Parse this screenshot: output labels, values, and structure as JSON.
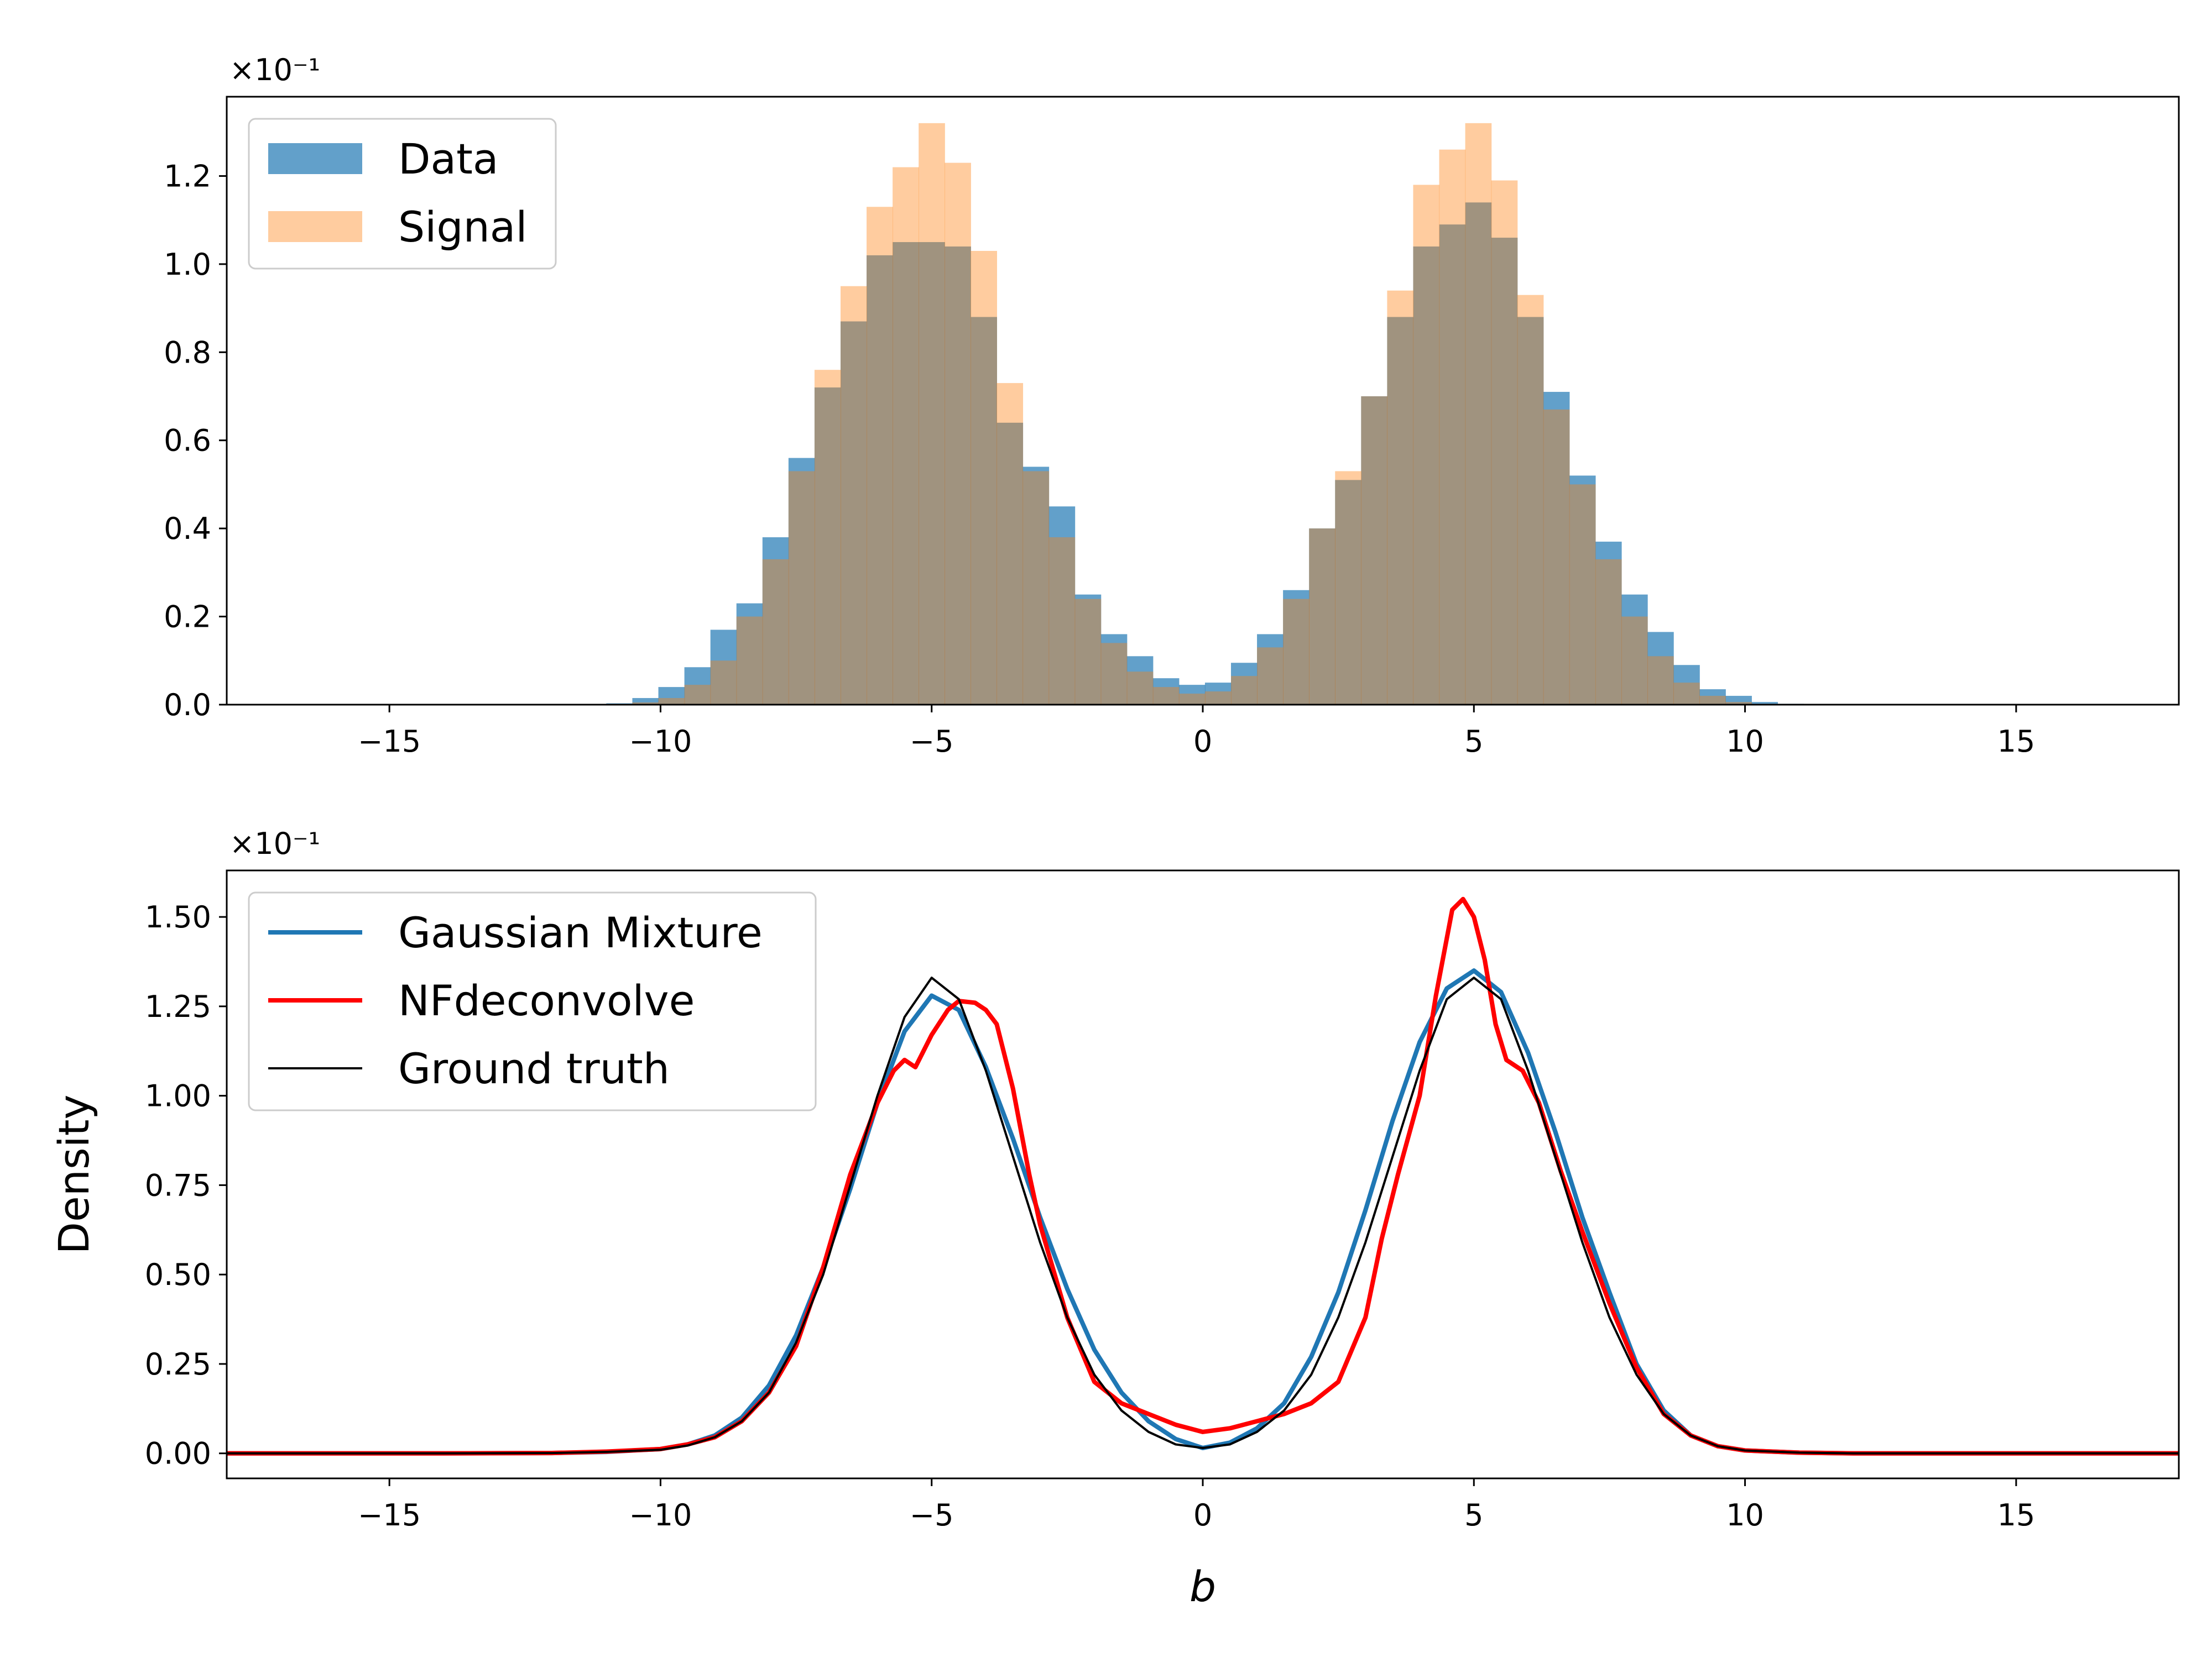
{
  "chart_data": [
    {
      "type": "bar",
      "subtype": "overlaid-histogram",
      "offset_label": "×10⁻¹",
      "xlim": [
        -18,
        18
      ],
      "ylim": [
        0,
        1.38
      ],
      "xticks": [
        -15,
        -10,
        -5,
        0,
        5,
        10,
        15
      ],
      "xtick_labels": [
        "−15",
        "−10",
        "−5",
        "0",
        "5",
        "10",
        "15"
      ],
      "yticks": [
        0.0,
        0.2,
        0.4,
        0.6,
        0.8,
        1.0,
        1.2
      ],
      "ytick_labels": [
        "0.0",
        "0.2",
        "0.4",
        "0.6",
        "0.8",
        "1.0",
        "1.2"
      ],
      "xlabel": "",
      "ylabel": "",
      "legend_position": "upper-left",
      "bin_edges": [
        -11.0,
        -10.52,
        -10.04,
        -9.56,
        -9.08,
        -8.6,
        -8.12,
        -7.64,
        -7.16,
        -6.68,
        -6.2,
        -5.72,
        -5.24,
        -4.76,
        -4.28,
        -3.8,
        -3.32,
        -2.84,
        -2.36,
        -1.88,
        -1.4,
        -0.92,
        -0.44,
        0.04,
        0.52,
        1.0,
        1.48,
        1.96,
        2.44,
        2.92,
        3.4,
        3.88,
        4.36,
        4.84,
        5.32,
        5.8,
        6.28,
        6.76,
        7.24,
        7.72,
        8.2,
        8.68,
        9.16,
        9.64,
        10.12,
        10.6,
        11.08
      ],
      "series": [
        {
          "name": "Data",
          "color": "#1f77b4",
          "alpha": 0.7,
          "values": [
            0.003,
            0.015,
            0.04,
            0.085,
            0.17,
            0.23,
            0.38,
            0.56,
            0.72,
            0.87,
            1.02,
            1.05,
            1.05,
            1.04,
            0.88,
            0.64,
            0.54,
            0.45,
            0.25,
            0.16,
            0.11,
            0.06,
            0.045,
            0.05,
            0.095,
            0.16,
            0.26,
            0.4,
            0.51,
            0.7,
            0.88,
            1.04,
            1.09,
            1.14,
            1.06,
            0.88,
            0.71,
            0.52,
            0.37,
            0.25,
            0.165,
            0.09,
            0.035,
            0.02,
            0.006,
            0.002
          ]
        },
        {
          "name": "Signal",
          "color": "#ff7f0e",
          "alpha": 0.4,
          "values": [
            0.0,
            0.005,
            0.015,
            0.045,
            0.1,
            0.2,
            0.33,
            0.53,
            0.76,
            0.95,
            1.13,
            1.22,
            1.32,
            1.23,
            1.03,
            0.73,
            0.53,
            0.38,
            0.24,
            0.14,
            0.075,
            0.04,
            0.025,
            0.03,
            0.065,
            0.13,
            0.24,
            0.4,
            0.53,
            0.7,
            0.94,
            1.18,
            1.26,
            1.32,
            1.19,
            0.93,
            0.67,
            0.5,
            0.33,
            0.2,
            0.11,
            0.05,
            0.02,
            0.006,
            0.002,
            0.0
          ]
        }
      ]
    },
    {
      "type": "line",
      "offset_label": "×10⁻¹",
      "xlim": [
        -18,
        18
      ],
      "ylim": [
        -0.07,
        1.63
      ],
      "xticks": [
        -15,
        -10,
        -5,
        0,
        5,
        10,
        15
      ],
      "xtick_labels": [
        "−15",
        "−10",
        "−5",
        "0",
        "5",
        "10",
        "15"
      ],
      "yticks": [
        0.0,
        0.25,
        0.5,
        0.75,
        1.0,
        1.25,
        1.5
      ],
      "ytick_labels": [
        "0.00",
        "0.25",
        "0.50",
        "0.75",
        "1.00",
        "1.25",
        "1.50"
      ],
      "xlabel": "b",
      "ylabel": "Density",
      "legend_position": "upper-left",
      "series": [
        {
          "name": "Gaussian Mixture",
          "color": "#1f77b4",
          "linewidth": 3,
          "x": [
            -18,
            -14,
            -12,
            -11,
            -10,
            -9.5,
            -9,
            -8.5,
            -8,
            -7.5,
            -7,
            -6.5,
            -6,
            -5.5,
            -5,
            -4.5,
            -4,
            -3.5,
            -3,
            -2.5,
            -2,
            -1.5,
            -1,
            -0.5,
            0,
            0.5,
            1,
            1.5,
            2,
            2.5,
            3,
            3.5,
            4,
            4.5,
            5,
            5.5,
            6,
            6.5,
            7,
            7.5,
            8,
            8.5,
            9,
            9.5,
            10,
            11,
            12,
            14,
            18
          ],
          "y": [
            0.0,
            0.0,
            0.001,
            0.004,
            0.012,
            0.025,
            0.05,
            0.1,
            0.19,
            0.33,
            0.52,
            0.74,
            0.98,
            1.18,
            1.28,
            1.24,
            1.08,
            0.88,
            0.66,
            0.46,
            0.29,
            0.17,
            0.09,
            0.04,
            0.015,
            0.03,
            0.07,
            0.14,
            0.27,
            0.45,
            0.68,
            0.93,
            1.15,
            1.3,
            1.35,
            1.29,
            1.12,
            0.9,
            0.66,
            0.45,
            0.25,
            0.12,
            0.05,
            0.02,
            0.008,
            0.002,
            0.0,
            0.0,
            0.0
          ]
        },
        {
          "name": "NFdeconvolve",
          "color": "#ff0000",
          "linewidth": 3,
          "x": [
            -18,
            -14,
            -12,
            -11,
            -10,
            -9.5,
            -9,
            -8.5,
            -8,
            -7.5,
            -7,
            -6.5,
            -6,
            -5.7,
            -5.5,
            -5.3,
            -5,
            -4.7,
            -4.5,
            -4.2,
            -4,
            -3.8,
            -3.5,
            -3.2,
            -3,
            -2.5,
            -2,
            -1.5,
            -1,
            -0.5,
            0,
            0.5,
            1,
            1.5,
            2,
            2.5,
            3,
            3.3,
            3.6,
            4,
            4.3,
            4.6,
            4.8,
            5,
            5.2,
            5.4,
            5.6,
            5.9,
            6.2,
            6.6,
            7,
            7.5,
            8,
            8.5,
            9,
            9.5,
            10,
            11,
            12,
            14,
            18
          ],
          "y": [
            0.0,
            0.0,
            0.001,
            0.005,
            0.012,
            0.025,
            0.045,
            0.09,
            0.17,
            0.3,
            0.52,
            0.78,
            0.98,
            1.07,
            1.1,
            1.08,
            1.17,
            1.24,
            1.265,
            1.26,
            1.24,
            1.2,
            1.02,
            0.78,
            0.64,
            0.38,
            0.2,
            0.14,
            0.11,
            0.08,
            0.06,
            0.07,
            0.09,
            0.11,
            0.14,
            0.2,
            0.38,
            0.6,
            0.78,
            1.0,
            1.28,
            1.52,
            1.55,
            1.5,
            1.38,
            1.2,
            1.1,
            1.07,
            0.98,
            0.79,
            0.62,
            0.42,
            0.24,
            0.11,
            0.05,
            0.02,
            0.008,
            0.002,
            0.0,
            0.0,
            0.0
          ]
        },
        {
          "name": "Ground truth",
          "color": "#000000",
          "linewidth": 1.5,
          "x": [
            -18,
            -14,
            -12,
            -11,
            -10,
            -9.5,
            -9,
            -8.5,
            -8,
            -7.5,
            -7,
            -6.5,
            -6,
            -5.5,
            -5,
            -4.5,
            -4,
            -3.5,
            -3,
            -2.5,
            -2,
            -1.5,
            -1,
            -0.5,
            0,
            0.5,
            1,
            1.5,
            2,
            2.5,
            3,
            3.5,
            4,
            4.5,
            5,
            5.5,
            6,
            6.5,
            7,
            7.5,
            8,
            8.5,
            9,
            9.5,
            10,
            11,
            12,
            14,
            18
          ],
          "y": [
            0.0,
            0.0,
            0.001,
            0.004,
            0.01,
            0.022,
            0.045,
            0.09,
            0.17,
            0.31,
            0.5,
            0.75,
            1.0,
            1.22,
            1.33,
            1.27,
            1.07,
            0.83,
            0.59,
            0.38,
            0.22,
            0.12,
            0.06,
            0.025,
            0.015,
            0.025,
            0.06,
            0.12,
            0.22,
            0.38,
            0.59,
            0.83,
            1.07,
            1.27,
            1.33,
            1.27,
            1.07,
            0.83,
            0.59,
            0.38,
            0.22,
            0.11,
            0.05,
            0.02,
            0.008,
            0.002,
            0.0,
            0.0,
            0.0
          ]
        }
      ]
    }
  ]
}
